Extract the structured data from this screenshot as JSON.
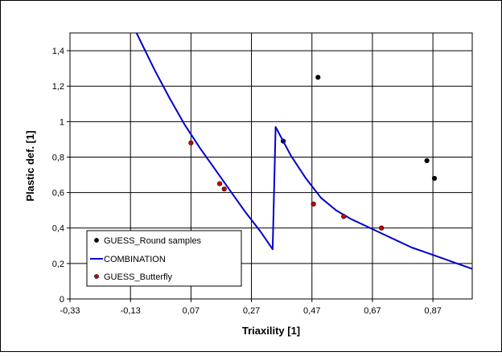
{
  "chart_data": {
    "type": "scatter",
    "xlabel": "Triaxility [1]",
    "ylabel": "Plastic def. [1]",
    "xlim": [
      -0.33,
      1.0
    ],
    "ylim": [
      0,
      1.5
    ],
    "x_ticks": [
      "-0,33",
      "-0,13",
      "0,07",
      "0,27",
      "0,47",
      "0,67",
      "0,87"
    ],
    "x_tick_values": [
      -0.33,
      -0.13,
      0.07,
      0.27,
      0.47,
      0.67,
      0.87
    ],
    "y_ticks": [
      "0",
      "0,2",
      "0,4",
      "0,6",
      "0,8",
      "1",
      "1,2",
      "1,4"
    ],
    "y_tick_values": [
      0,
      0.2,
      0.4,
      0.6,
      0.8,
      1.0,
      1.2,
      1.4
    ],
    "grid": true,
    "legend_position": "bottom-left",
    "series": [
      {
        "name": "GUESS_Round samples",
        "kind": "scatter",
        "color": "#000000",
        "points": [
          [
            0.375,
            0.89
          ],
          [
            0.49,
            1.25
          ],
          [
            0.85,
            0.78
          ],
          [
            0.875,
            0.68
          ]
        ]
      },
      {
        "name": "COMBINATION",
        "kind": "line",
        "color": "#0000cc",
        "points": [
          [
            -0.11,
            1.5
          ],
          [
            -0.05,
            1.29
          ],
          [
            0.0,
            1.13
          ],
          [
            0.05,
            0.98
          ],
          [
            0.1,
            0.85
          ],
          [
            0.15,
            0.73
          ],
          [
            0.2,
            0.61
          ],
          [
            0.25,
            0.49
          ],
          [
            0.3,
            0.38
          ],
          [
            0.34,
            0.28
          ],
          [
            0.35,
            0.97
          ],
          [
            0.4,
            0.81
          ],
          [
            0.45,
            0.68
          ],
          [
            0.5,
            0.57
          ],
          [
            0.55,
            0.5
          ],
          [
            0.6,
            0.45
          ],
          [
            0.65,
            0.41
          ],
          [
            0.7,
            0.37
          ],
          [
            0.75,
            0.33
          ],
          [
            0.8,
            0.29
          ],
          [
            0.85,
            0.26
          ],
          [
            0.9,
            0.23
          ],
          [
            0.95,
            0.2
          ],
          [
            1.0,
            0.17
          ]
        ]
      },
      {
        "name": "GUESS_Butterfly",
        "kind": "scatter",
        "color": "#cc0000",
        "points": [
          [
            0.07,
            0.88
          ],
          [
            0.165,
            0.65
          ],
          [
            0.18,
            0.62
          ],
          [
            0.475,
            0.535
          ],
          [
            0.575,
            0.465
          ],
          [
            0.7,
            0.4
          ]
        ]
      }
    ]
  }
}
